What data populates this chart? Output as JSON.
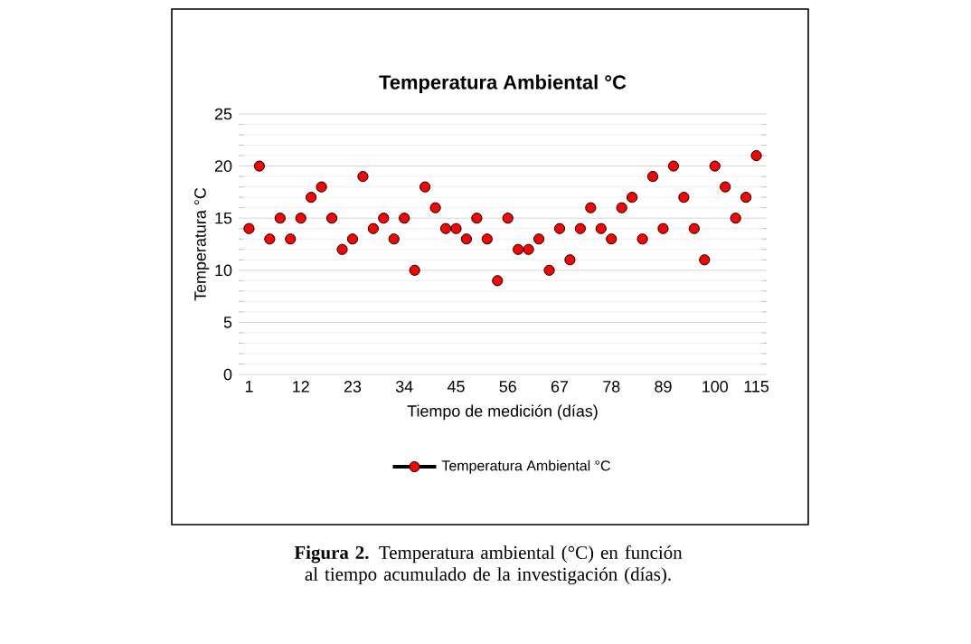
{
  "chart_data": {
    "type": "scatter",
    "title": "Temperatura Ambiental °C",
    "xlabel": "Tiempo de medición (días)",
    "ylabel": "Temperatura °C",
    "categories": [
      "1",
      null,
      null,
      null,
      null,
      "12",
      null,
      null,
      null,
      null,
      "23",
      null,
      null,
      null,
      null,
      "34",
      null,
      null,
      null,
      null,
      "45",
      null,
      null,
      null,
      null,
      "56",
      null,
      null,
      null,
      null,
      "67",
      null,
      null,
      null,
      null,
      "78",
      null,
      null,
      null,
      null,
      "89",
      null,
      null,
      null,
      null,
      "100",
      null,
      null,
      null,
      "115"
    ],
    "series": [
      {
        "name": "Temperatura Ambiental °C",
        "color": "#ff0000",
        "values": [
          14,
          20,
          13,
          15,
          13,
          15,
          17,
          18,
          15,
          12,
          13,
          19,
          14,
          15,
          13,
          15,
          10,
          18,
          16,
          14,
          14,
          13,
          15,
          13,
          9,
          15,
          12,
          12,
          13,
          10,
          14,
          11,
          14,
          16,
          14,
          13,
          16,
          17,
          13,
          19,
          14,
          20,
          17,
          14,
          11,
          20,
          18,
          15,
          17,
          21
        ]
      }
    ],
    "ylim": [
      0,
      25
    ],
    "yticks": [
      0,
      5,
      10,
      15,
      20,
      25
    ],
    "grid": "y",
    "legend": "bottom",
    "marker": "circle",
    "annotations": [
      "**Figura 2.** Temperatura ambiental (°C) en función al tiempo acumulado de la investigación (días)."
    ]
  }
}
